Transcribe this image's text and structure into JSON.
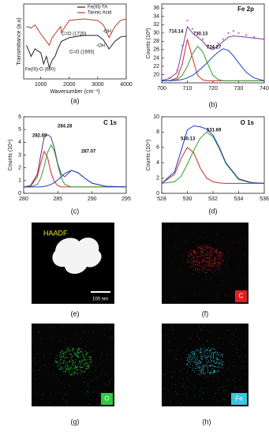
{
  "chart_data": [
    {
      "type": "line",
      "xlabel": "Wavenumber (cm⁻¹)",
      "ylabel": "Transmittance (a.u)",
      "x": [
        500,
        660,
        800,
        1000,
        1100,
        1200,
        1300,
        1400,
        1500,
        1600,
        1700,
        1720,
        2000,
        2500,
        3000,
        3200,
        3400,
        3600,
        3800,
        4000
      ],
      "series": [
        {
          "name": "Fe(III)-TA",
          "color": "#222222",
          "values": [
            45,
            30,
            40,
            35,
            20,
            30,
            15,
            25,
            30,
            40,
            48,
            50,
            55,
            58,
            58,
            52,
            40,
            50,
            56,
            57
          ]
        },
        {
          "name": "Tannic Acid",
          "color": "#c0392b",
          "values": [
            70,
            68,
            72,
            60,
            55,
            50,
            45,
            55,
            60,
            65,
            70,
            62,
            78,
            80,
            78,
            72,
            55,
            70,
            78,
            80
          ]
        }
      ],
      "xlim": [
        400,
        4000
      ],
      "ylim": [
        0,
        100
      ],
      "xticks": [
        1000,
        2000,
        3000,
        4000
      ],
      "legend": "top-right",
      "annotations": [
        "C=O (1720)",
        "C=O (1693)",
        "-OH",
        "-OH",
        "Fe(III)-O (660)"
      ]
    },
    {
      "type": "line",
      "title": "Fe 2p",
      "ylabel": "Counts (10³)",
      "x": [
        700,
        703,
        706,
        708,
        710,
        712,
        714,
        716,
        718,
        720,
        722,
        724,
        726,
        728,
        730,
        733,
        736,
        740
      ],
      "series": [
        {
          "color": "#d070d0",
          "style": "points",
          "values": [
            18.7,
            19.2,
            21,
            27,
            33,
            31,
            30,
            28.5,
            27,
            26.5,
            27.5,
            28.5,
            30,
            30.5,
            30,
            29.5,
            29,
            28.7
          ]
        },
        {
          "color": "#7b3fa0",
          "values": [
            18.6,
            19,
            20.5,
            26,
            31.5,
            30,
            29,
            28,
            26.5,
            26,
            27,
            28,
            29,
            29.3,
            29.2,
            29,
            28.8,
            28.5
          ]
        },
        {
          "color": "#d62728",
          "values": [
            18.5,
            18.5,
            19.2,
            22.5,
            28.5,
            24,
            19.8,
            18.7,
            18.5,
            18.5,
            18.5,
            18.5,
            18.5,
            18.5,
            18.5,
            18.5,
            18.5,
            18.5
          ]
        },
        {
          "color": "#2ca02c",
          "values": [
            18.5,
            18.5,
            18.8,
            19.8,
            22,
            25,
            26.8,
            25.5,
            22.5,
            19.8,
            18.8,
            18.5,
            18.5,
            18.5,
            18.5,
            18.5,
            18.5,
            18.5
          ]
        },
        {
          "color": "#1f3fbf",
          "values": [
            18.5,
            18.5,
            18.6,
            18.8,
            19.2,
            19.8,
            20.7,
            21.8,
            23,
            24.3,
            25.4,
            26.2,
            25.8,
            24.5,
            22.8,
            20.5,
            19.2,
            18.5
          ]
        }
      ],
      "xlim": [
        700,
        740
      ],
      "ylim": [
        18,
        37
      ],
      "xticks": [
        700,
        710,
        720,
        730,
        740
      ],
      "yticks": [
        20,
        22,
        24,
        26,
        28,
        30,
        32,
        34,
        36
      ],
      "annotations": [
        "714.14",
        "710.13",
        "724.27"
      ]
    },
    {
      "type": "line",
      "title": "C 1s",
      "ylabel": "Counts (10⁴)",
      "x": [
        280,
        281,
        282,
        282.5,
        283,
        283.5,
        284,
        284.5,
        285,
        285.5,
        286,
        287,
        288,
        289,
        290,
        292,
        295
      ],
      "series": [
        {
          "color": "#5a2d82",
          "values": [
            0.5,
            0.6,
            1.5,
            3.0,
            4.4,
            4.6,
            4.4,
            3.5,
            2.3,
            1.5,
            1.3,
            1.8,
            1.6,
            1.15,
            0.8,
            0.55,
            0.5
          ]
        },
        {
          "color": "#d62728",
          "values": [
            0.5,
            0.55,
            1.3,
            2.4,
            3.3,
            2.8,
            1.6,
            0.9,
            0.6,
            0.5,
            0.5,
            0.5,
            0.5,
            0.5,
            0.5,
            0.5,
            0.5
          ]
        },
        {
          "color": "#2ca02c",
          "values": [
            0.5,
            0.5,
            0.7,
            1.2,
            2.1,
            3.2,
            3.8,
            3.3,
            2.2,
            1.2,
            0.7,
            0.5,
            0.5,
            0.5,
            0.5,
            0.5,
            0.5
          ]
        },
        {
          "color": "#1f3fbf",
          "values": [
            0.5,
            0.5,
            0.5,
            0.5,
            0.55,
            0.6,
            0.7,
            0.85,
            1.05,
            1.3,
            1.55,
            1.8,
            1.6,
            1.15,
            0.8,
            0.55,
            0.5
          ]
        }
      ],
      "xlim": [
        280,
        295
      ],
      "ylim": [
        0,
        6
      ],
      "xticks": [
        280,
        285,
        290,
        295
      ],
      "yticks": [
        0,
        1,
        2,
        3,
        4,
        5,
        6
      ],
      "annotations": [
        "282.89",
        "284.28",
        "287.07"
      ]
    },
    {
      "type": "line",
      "title": "O 1s",
      "ylabel": "Counts (10⁴)",
      "x": [
        528,
        529,
        529.5,
        530,
        530.5,
        531,
        531.5,
        532,
        532.5,
        533,
        534,
        535,
        536
      ],
      "series": [
        {
          "color": "#d62728",
          "values": [
            1.3,
            2.5,
            4.5,
            6.0,
            5.3,
            3.3,
            2.0,
            1.5,
            1.35,
            1.3,
            1.3,
            1.3,
            1.3
          ]
        },
        {
          "color": "#2ca02c",
          "values": [
            1.3,
            1.5,
            2.2,
            3.8,
            5.6,
            7.2,
            8.0,
            7.4,
            5.8,
            3.9,
            1.8,
            1.35,
            1.3
          ]
        },
        {
          "color": "#1f3fbf",
          "values": [
            1.3,
            2.8,
            5.5,
            8.3,
            8.8,
            8.7,
            8.4,
            7.6,
            6.0,
            4.0,
            1.9,
            1.4,
            1.3
          ]
        }
      ],
      "xlim": [
        528,
        536
      ],
      "ylim": [
        0,
        10
      ],
      "xticks": [
        528,
        530,
        532,
        534,
        536
      ],
      "yticks": [
        0,
        2,
        4,
        6,
        8,
        10
      ],
      "annotations": [
        "530.13",
        "531.69"
      ]
    }
  ],
  "figure": {
    "panel_labels": [
      "(a)",
      "(b)",
      "(c)",
      "(d)",
      "(e)",
      "(f)",
      "(g)",
      "(h)"
    ],
    "haadf": {
      "label": "HAADF",
      "scale_bar": "100 nm"
    },
    "maps": [
      {
        "element": "C",
        "color": "#e02020"
      },
      {
        "element": "O",
        "color": "#2ecc40"
      },
      {
        "element": "Fe",
        "color": "#39c6e0"
      }
    ]
  }
}
